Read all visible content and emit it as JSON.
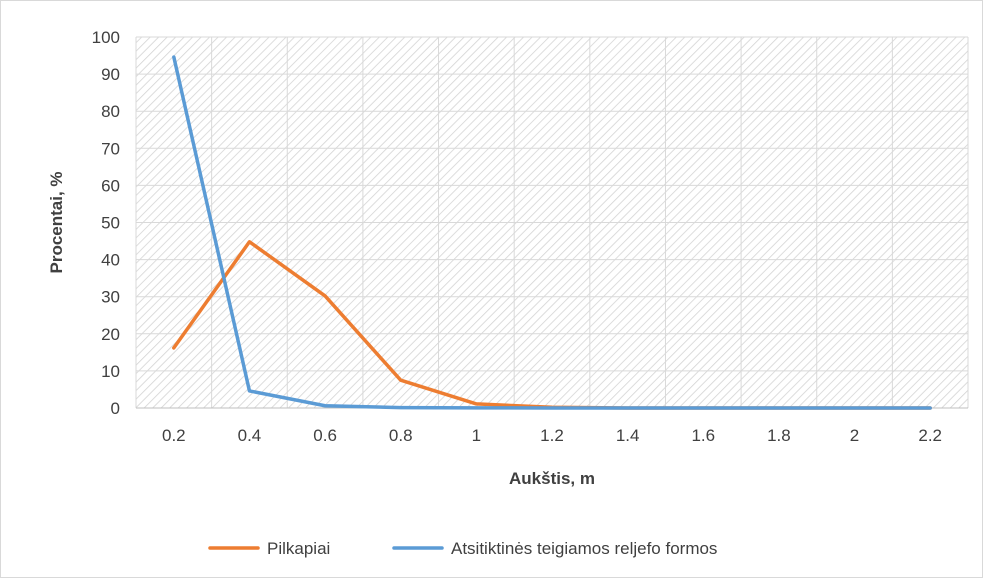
{
  "chart_data": {
    "type": "line",
    "xlabel": "Aukštis, m",
    "ylabel": "Procentai, %",
    "categories": [
      "0.2",
      "0.4",
      "0.6",
      "0.8",
      "1",
      "1.2",
      "1.4",
      "1.6",
      "1.8",
      "2",
      "2.2"
    ],
    "yticks": [
      "0",
      "10",
      "20",
      "30",
      "40",
      "50",
      "60",
      "70",
      "80",
      "90",
      "100"
    ],
    "ylim": [
      0,
      100
    ],
    "grid": true,
    "legend_position": "bottom",
    "series": [
      {
        "name": "Pilkapiai",
        "color": "#ED7D31",
        "values": [
          16.2,
          44.8,
          30.2,
          7.5,
          1.1,
          0.2,
          0,
          0,
          0,
          0,
          0
        ]
      },
      {
        "name": "Atsitiktinės teigiamos reljefo formos",
        "color": "#5B9BD5",
        "values": [
          94.6,
          4.6,
          0.6,
          0.1,
          0.05,
          0,
          0,
          0,
          0,
          0,
          0
        ]
      }
    ]
  }
}
